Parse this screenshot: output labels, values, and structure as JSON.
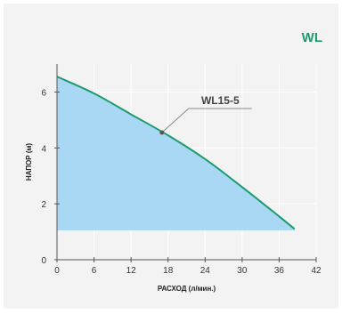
{
  "brand": {
    "label": "WL"
  },
  "chart_data": {
    "type": "area",
    "title": "",
    "xlabel": "РАСХОД (л/мин.)",
    "ylabel": "НАПОР (м)",
    "xlim": [
      0,
      42
    ],
    "ylim": [
      0,
      7
    ],
    "x_ticks": [
      0,
      6,
      12,
      18,
      24,
      30,
      36,
      42
    ],
    "y_ticks": [
      0,
      2,
      4,
      6
    ],
    "grid": true,
    "series": [
      {
        "name": "WL15-5",
        "color": "#1f9a6e",
        "fill_color": "#a8d8f4",
        "x": [
          0,
          6,
          12,
          18,
          24,
          30,
          36,
          38.5
        ],
        "y": [
          6.55,
          5.95,
          5.2,
          4.45,
          3.6,
          2.6,
          1.55,
          1.1
        ]
      }
    ],
    "annotations": [
      {
        "text": "WL15-5",
        "x": 17,
        "y": 4.55
      }
    ],
    "fill_baseline": 1.05
  }
}
